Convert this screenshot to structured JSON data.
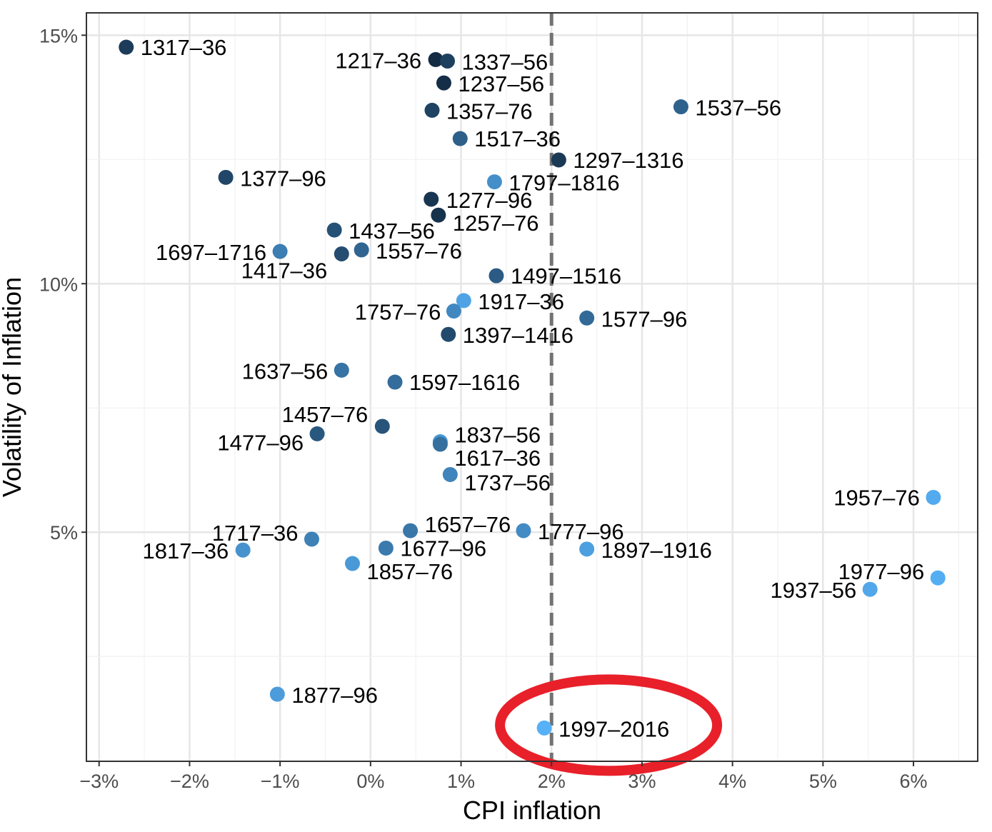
{
  "chart_data": {
    "type": "scatter",
    "xlabel": "CPI inflation",
    "ylabel": "Volatility of Inflation",
    "xlim": [
      -3.14,
      6.71
    ],
    "ylim": [
      0.39,
      15.45
    ],
    "x_ticks": [
      -3,
      -2,
      -1,
      0,
      1,
      2,
      3,
      4,
      5,
      6
    ],
    "x_tick_labels": [
      "−3%",
      "−2%",
      "−1%",
      "0%",
      "1%",
      "2%",
      "3%",
      "4%",
      "5%",
      "6%"
    ],
    "y_ticks": [
      5,
      10,
      15
    ],
    "y_tick_labels": [
      "5%",
      "10%",
      "15%"
    ],
    "grid": true,
    "reference_line": {
      "x": 2,
      "style": "dashed",
      "color": "#737373"
    },
    "highlight": {
      "label": "1997–2016",
      "shape": "ellipse",
      "color": "#E8202A"
    },
    "color_scale": {
      "low": "#132B43",
      "high": "#56B1F7",
      "by": "period start year"
    },
    "points": [
      {
        "label": "1317–36",
        "x": -2.7,
        "y": 14.76
      },
      {
        "label": "1217–36",
        "x": 0.72,
        "y": 14.51
      },
      {
        "label": "1337–56",
        "x": 0.85,
        "y": 14.48
      },
      {
        "label": "1237–56",
        "x": 0.81,
        "y": 14.04
      },
      {
        "label": "1357–76",
        "x": 0.68,
        "y": 13.49
      },
      {
        "label": "1537–56",
        "x": 3.43,
        "y": 13.56
      },
      {
        "label": "1517–36",
        "x": 0.99,
        "y": 12.92
      },
      {
        "label": "1297–1316",
        "x": 2.08,
        "y": 12.49
      },
      {
        "label": "1377–96",
        "x": -1.6,
        "y": 12.14
      },
      {
        "label": "1797–1816",
        "x": 1.37,
        "y": 12.05
      },
      {
        "label": "1277–96",
        "x": 0.67,
        "y": 11.7
      },
      {
        "label": "1257–76",
        "x": 0.75,
        "y": 11.38
      },
      {
        "label": "1437–56",
        "x": -0.4,
        "y": 11.08
      },
      {
        "label": "1697–1716",
        "x": -1.0,
        "y": 10.65
      },
      {
        "label": "1417–36",
        "x": -0.32,
        "y": 10.6
      },
      {
        "label": "1557–76",
        "x": -0.1,
        "y": 10.68
      },
      {
        "label": "1497–1516",
        "x": 1.39,
        "y": 10.16
      },
      {
        "label": "1917–36",
        "x": 1.03,
        "y": 9.66
      },
      {
        "label": "1757–76",
        "x": 0.92,
        "y": 9.45
      },
      {
        "label": "1577–96",
        "x": 2.39,
        "y": 9.31
      },
      {
        "label": "1397–1416",
        "x": 0.86,
        "y": 8.98
      },
      {
        "label": "1637–56",
        "x": -0.32,
        "y": 8.26
      },
      {
        "label": "1597–1616",
        "x": 0.27,
        "y": 8.02
      },
      {
        "label": "1457–76",
        "x": 0.13,
        "y": 7.13
      },
      {
        "label": "1477–96",
        "x": -0.59,
        "y": 6.98
      },
      {
        "label": "1837–56",
        "x": 0.77,
        "y": 6.82
      },
      {
        "label": "1617–36",
        "x": 0.77,
        "y": 6.77
      },
      {
        "label": "1737–56",
        "x": 0.88,
        "y": 6.16
      },
      {
        "label": "1957–76",
        "x": 6.22,
        "y": 5.7
      },
      {
        "label": "1657–76",
        "x": 0.44,
        "y": 5.03
      },
      {
        "label": "1777–96",
        "x": 1.69,
        "y": 5.03
      },
      {
        "label": "1717–36",
        "x": -0.65,
        "y": 4.86
      },
      {
        "label": "1817–36",
        "x": -1.41,
        "y": 4.64
      },
      {
        "label": "1677–96",
        "x": 0.17,
        "y": 4.68
      },
      {
        "label": "1897–1916",
        "x": 2.39,
        "y": 4.66
      },
      {
        "label": "1857–76",
        "x": -0.2,
        "y": 4.37
      },
      {
        "label": "1977–96",
        "x": 6.27,
        "y": 4.08
      },
      {
        "label": "1937–56",
        "x": 5.52,
        "y": 3.85
      },
      {
        "label": "1877–96",
        "x": -1.03,
        "y": 1.74
      },
      {
        "label": "1997–2016",
        "x": 1.92,
        "y": 1.06
      }
    ]
  }
}
